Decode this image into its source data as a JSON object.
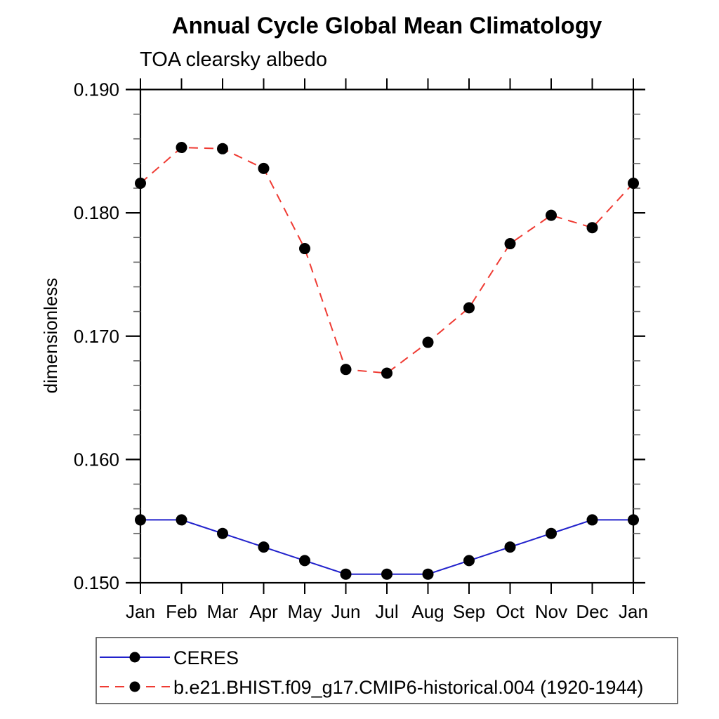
{
  "chart_data": {
    "type": "line",
    "title": "Annual Cycle Global Mean Climatology",
    "subtitle": "TOA clearsky albedo",
    "ylabel": "dimensionless",
    "xlabel": "",
    "categories": [
      "Jan",
      "Feb",
      "Mar",
      "Apr",
      "May",
      "Jun",
      "Jul",
      "Aug",
      "Sep",
      "Oct",
      "Nov",
      "Dec",
      "Jan"
    ],
    "ylim": [
      0.15,
      0.19
    ],
    "ytick_major": [
      0.15,
      0.16,
      0.17,
      0.18,
      0.19
    ],
    "ytick_minor_step": 0.002,
    "ytick_label_decimals": 3,
    "grid": false,
    "legend_position": "bottom-left",
    "series": [
      {
        "name": "CERES",
        "color": "#2222cc",
        "style": "solid",
        "marker": "circle",
        "marker_color": "#000000",
        "values": [
          0.1551,
          0.1551,
          0.154,
          0.1529,
          0.1518,
          0.1507,
          0.1507,
          0.1507,
          0.1518,
          0.1529,
          0.154,
          0.1551,
          0.1551
        ]
      },
      {
        "name": "b.e21.BHIST.f09_g17.CMIP6-historical.004 (1920-1944)",
        "color": "#ef3b33",
        "style": "dashed",
        "marker": "circle",
        "marker_color": "#000000",
        "values": [
          0.1824,
          0.1853,
          0.1852,
          0.1836,
          0.1771,
          0.1673,
          0.167,
          0.1695,
          0.1723,
          0.1775,
          0.1798,
          0.1788,
          0.1824
        ]
      }
    ],
    "colors": {
      "axis": "#000000",
      "minor_tick": "#666666",
      "background": "#ffffff"
    }
  }
}
